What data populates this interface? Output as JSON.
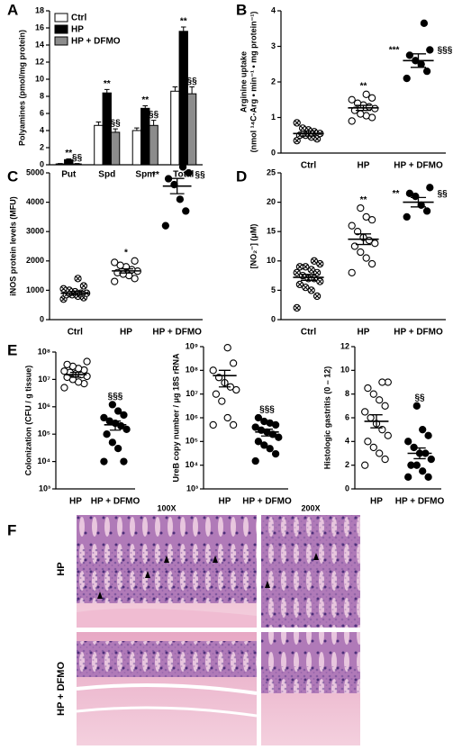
{
  "chart_data": [
    {
      "type": "bar",
      "panel": "A",
      "ylabel": "Polyamines (pmol/mg protein)",
      "categories": [
        "Put",
        "Spd",
        "Spm",
        "Total"
      ],
      "series": [
        {
          "name": "Ctrl",
          "color": "#ffffff",
          "values": [
            0.1,
            4.6,
            4.0,
            8.6
          ],
          "errors": [
            0.05,
            0.4,
            0.3,
            0.5
          ]
        },
        {
          "name": "HP",
          "color": "#000000",
          "values": [
            0.6,
            8.4,
            6.6,
            15.6
          ],
          "errors": [
            0.1,
            0.4,
            0.3,
            0.5
          ],
          "annotations": [
            "**",
            "**",
            "**",
            "**"
          ]
        },
        {
          "name": "HP + DFMO",
          "color": "#8c8c8c",
          "values": [
            0.1,
            3.8,
            4.6,
            8.3
          ],
          "errors": [
            0.05,
            0.4,
            0.6,
            0.8
          ],
          "annotations": [
            "§§",
            "§§",
            "§§",
            "§§"
          ]
        }
      ],
      "ylim": [
        0,
        18
      ],
      "yticks": [
        0,
        2,
        4,
        6,
        8,
        10,
        12,
        14,
        16,
        18
      ]
    },
    {
      "type": "dot",
      "panel": "B",
      "ylabel": [
        "Arginine uptake",
        "(nmol ¹⁴C-Arg • min⁻¹ • mg protein⁻¹)"
      ],
      "categories": [
        "Ctrl",
        "HP",
        "HP + DFMO"
      ],
      "markers": [
        "crossed",
        "open",
        "filled"
      ],
      "points": [
        [
          0.35,
          0.4,
          0.45,
          0.5,
          0.5,
          0.55,
          0.6,
          0.65,
          0.7,
          0.85
        ],
        [
          0.9,
          1.0,
          1.05,
          1.1,
          1.2,
          1.25,
          1.3,
          1.35,
          1.4,
          1.5,
          1.55,
          1.65
        ],
        [
          2.1,
          2.3,
          2.5,
          2.6,
          2.75,
          2.9,
          3.65
        ]
      ],
      "means": [
        0.55,
        1.27,
        2.6
      ],
      "sems": [
        0.07,
        0.07,
        0.19
      ],
      "annotations": [
        [],
        [
          "**"
        ],
        [
          "***",
          "§§§"
        ]
      ],
      "ylim": [
        0,
        4
      ],
      "yticks": [
        0,
        1,
        2,
        3,
        4
      ]
    },
    {
      "type": "dot",
      "panel": "C",
      "ylabel": "iNOS protein levels (MFU)",
      "categories": [
        "Ctrl",
        "HP",
        "HP + DFMO"
      ],
      "markers": [
        "crossed",
        "open",
        "filled"
      ],
      "points": [
        [
          700,
          750,
          800,
          850,
          850,
          900,
          900,
          950,
          1000,
          1050,
          1150,
          1400
        ],
        [
          1300,
          1400,
          1500,
          1550,
          1600,
          1650,
          1700,
          1800,
          1850,
          1950,
          2000
        ],
        [
          3200,
          3700,
          4100,
          4600,
          4800,
          5000,
          5200
        ]
      ],
      "means": [
        900,
        1660,
        4550
      ],
      "sems": [
        60,
        70,
        260
      ],
      "annotations": [
        [],
        [
          "*"
        ],
        [
          "**",
          "§§"
        ]
      ],
      "ylim": [
        0,
        5000
      ],
      "yticks": [
        0,
        1000,
        2000,
        3000,
        4000,
        5000
      ]
    },
    {
      "type": "dot",
      "panel": "D",
      "ylabel": "[NO₂⁻] (μM)",
      "categories": [
        "Ctrl",
        "HP",
        "HP + DFMO"
      ],
      "markers": [
        "crossed",
        "open",
        "filled"
      ],
      "points": [
        [
          2,
          4,
          5,
          5.5,
          6,
          6.5,
          7,
          7,
          7.5,
          8,
          8,
          8.5,
          9,
          9,
          9.5,
          10
        ],
        [
          8,
          9.5,
          10.5,
          11.5,
          12.5,
          13,
          13.5,
          14,
          15,
          16,
          17,
          17.5,
          19
        ],
        [
          17.5,
          18.5,
          19.5,
          21,
          21.5,
          22.5
        ]
      ],
      "means": [
        7.2,
        13.7,
        20
      ],
      "sems": [
        0.5,
        0.9,
        0.8
      ],
      "annotations": [
        [],
        [
          "**"
        ],
        [
          "**",
          "§§"
        ]
      ],
      "ylim": [
        0,
        25
      ],
      "yticks": [
        0,
        5,
        10,
        15,
        20,
        25
      ]
    },
    {
      "type": "dot",
      "panel": "E",
      "ylabel": "Colonization (CFU / g tissue)",
      "log_scale": true,
      "categories": [
        "HP",
        "HP + DFMO"
      ],
      "markers": [
        "open",
        "filled"
      ],
      "points": [
        [
          5000000,
          7000000,
          8000000,
          10000000,
          12000000,
          13000000,
          15000000,
          16000000,
          18000000,
          20000000,
          22000000,
          25000000,
          30000000,
          35000000,
          45000000
        ],
        [
          10000,
          10000,
          30000,
          50000,
          100000,
          150000,
          200000,
          250000,
          300000,
          400000,
          500000,
          700000,
          1200000
        ]
      ],
      "means": [
        15000000,
        220000
      ],
      "sems": [
        3000000,
        80000
      ],
      "annotations": [
        [],
        [
          "§§§"
        ]
      ],
      "ylim": [
        1000,
        100000000
      ],
      "yticks": [
        {
          "value": 1000,
          "label": "10³"
        },
        {
          "value": 10000,
          "label": "10⁴"
        },
        {
          "value": 100000,
          "label": "10⁵"
        },
        {
          "value": 1000000,
          "label": "10⁶"
        },
        {
          "value": 10000000,
          "label": "10⁷"
        },
        {
          "value": 100000000,
          "label": "10⁸"
        }
      ]
    },
    {
      "type": "dot",
      "ylabel": "UreB copy number / μg 18S rRNA",
      "log_scale": true,
      "categories": [
        "HP",
        "HP + DFMO"
      ],
      "markers": [
        "open",
        "filled"
      ],
      "points": [
        [
          500000,
          500000,
          1000000,
          5000000,
          10000000,
          15000000,
          20000000,
          30000000,
          50000000,
          100000000,
          200000000,
          900000000
        ],
        [
          15000,
          30000,
          50000,
          70000,
          100000,
          150000,
          200000,
          250000,
          300000,
          400000,
          500000,
          600000,
          700000,
          1000000
        ]
      ],
      "means": [
        60000000,
        250000
      ],
      "sems": [
        40000000,
        80000
      ],
      "annotations": [
        [],
        [
          "§§§"
        ]
      ],
      "ylim": [
        1000,
        1000000000
      ],
      "yticks": [
        {
          "value": 1000,
          "label": "10³"
        },
        {
          "value": 10000,
          "label": "10⁴"
        },
        {
          "value": 100000,
          "label": "10⁵"
        },
        {
          "value": 1000000,
          "label": "10⁶"
        },
        {
          "value": 10000000,
          "label": "10⁷"
        },
        {
          "value": 100000000,
          "label": "10⁸"
        },
        {
          "value": 1000000000,
          "label": "10⁹"
        }
      ]
    },
    {
      "type": "dot",
      "ylabel": "Histologic gastritis (0 – 12)",
      "categories": [
        "HP",
        "HP + DFMO"
      ],
      "markers": [
        "open",
        "filled"
      ],
      "points": [
        [
          2,
          2.5,
          3,
          3.5,
          4,
          4.5,
          5,
          5.5,
          6,
          6.5,
          7,
          7.5,
          8,
          8.5,
          9,
          9
        ],
        [
          1,
          1,
          1.5,
          2,
          2,
          2.5,
          3,
          3,
          3.5,
          4,
          4.5,
          5,
          7
        ]
      ],
      "means": [
        5.7,
        3
      ],
      "sems": [
        0.55,
        0.45
      ],
      "annotations": [
        [],
        [
          "§§"
        ]
      ],
      "ylim": [
        0,
        12
      ],
      "yticks": [
        0,
        2,
        4,
        6,
        8,
        10,
        12
      ]
    }
  ],
  "histology": {
    "label": "F",
    "columns": [
      "100X",
      "200X"
    ],
    "rows": [
      "HP",
      "HP + DFMO"
    ]
  }
}
